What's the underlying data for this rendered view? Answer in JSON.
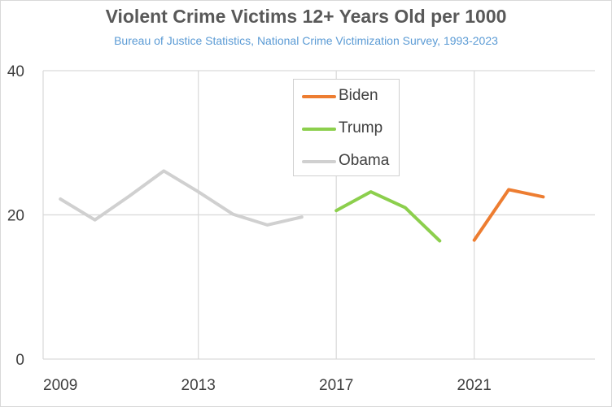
{
  "chart_data": {
    "type": "line",
    "title": "Violent Crime Victims 12+ Years Old per 1000",
    "subtitle": "Bureau of Justice Statistics, National Crime Victimization Survey, 1993-2023",
    "xlabel": "",
    "ylabel": "",
    "xlim": [
      2008.5,
      2024.5
    ],
    "ylim": [
      0,
      40
    ],
    "x_ticks": [
      2009,
      2013,
      2017,
      2021
    ],
    "y_ticks": [
      0,
      20,
      40
    ],
    "grid": true,
    "legend_position": "top-center",
    "series": [
      {
        "name": "Obama",
        "color": "#d0d0d0",
        "x": [
          2009,
          2010,
          2011,
          2012,
          2013,
          2014,
          2015,
          2016
        ],
        "y": [
          22.2,
          19.3,
          22.6,
          26.1,
          23.2,
          20.1,
          18.6,
          19.7
        ]
      },
      {
        "name": "Trump",
        "color": "#8ccf4d",
        "x": [
          2017,
          2018,
          2019,
          2020
        ],
        "y": [
          20.6,
          23.2,
          21.0,
          16.4
        ]
      },
      {
        "name": "Biden",
        "color": "#ed7d31",
        "x": [
          2021,
          2022,
          2023
        ],
        "y": [
          16.5,
          23.5,
          22.5
        ]
      }
    ],
    "legend_order": [
      "Biden",
      "Trump",
      "Obama"
    ]
  }
}
